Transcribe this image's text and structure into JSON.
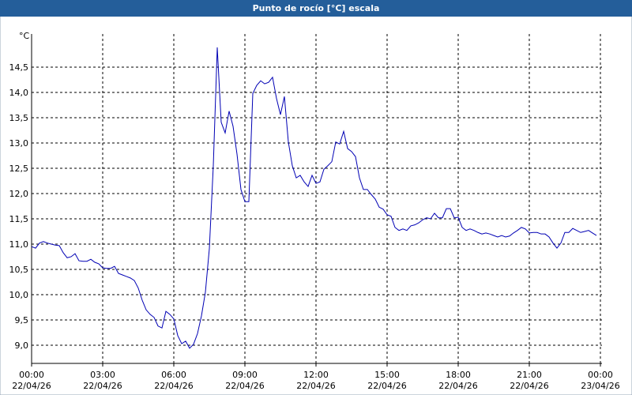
{
  "chart_data": {
    "type": "line",
    "title": "Punto de rocío [°C] escala",
    "ylabel": "°C",
    "x": [
      0,
      10,
      20,
      30,
      40,
      50,
      60,
      70,
      80,
      90,
      100,
      110,
      120,
      130,
      140,
      150,
      160,
      170,
      180,
      190,
      200,
      210,
      220,
      230,
      240,
      250,
      260,
      270,
      280,
      290,
      300,
      310,
      320,
      330,
      340,
      350,
      360,
      370,
      380,
      390,
      400,
      410,
      420,
      430,
      440,
      450,
      460,
      470,
      480,
      490,
      500,
      510,
      520,
      530,
      540,
      550,
      560,
      570,
      580,
      590,
      600,
      610,
      620,
      630,
      640,
      650,
      660,
      670,
      680,
      690,
      700,
      710,
      720,
      730,
      740,
      750,
      760,
      770,
      780,
      790,
      800,
      810,
      820,
      830,
      840,
      850,
      860,
      870,
      880,
      890,
      900,
      910,
      920,
      930,
      940,
      950,
      960,
      970,
      980,
      990,
      1000,
      1010,
      1020,
      1030,
      1040,
      1050,
      1060,
      1070,
      1080,
      1090,
      1100,
      1110,
      1120,
      1130,
      1140,
      1150,
      1160,
      1170,
      1180,
      1190,
      1200,
      1210,
      1220,
      1230,
      1240,
      1250,
      1260,
      1270,
      1280,
      1290,
      1300,
      1310,
      1320,
      1330,
      1340,
      1350,
      1360,
      1370,
      1380,
      1390,
      1400,
      1410,
      1420,
      1430
    ],
    "series": [
      {
        "color": "#0000b4",
        "values": [
          10.95,
          10.92,
          11.02,
          11.05,
          11.02,
          11.0,
          10.98,
          10.97,
          10.83,
          10.73,
          10.75,
          10.81,
          10.67,
          10.66,
          10.66,
          10.7,
          10.64,
          10.61,
          10.53,
          10.52,
          10.52,
          10.56,
          10.42,
          10.39,
          10.36,
          10.33,
          10.28,
          10.13,
          9.89,
          9.7,
          9.61,
          9.55,
          9.38,
          9.34,
          9.67,
          9.61,
          9.52,
          9.19,
          9.03,
          9.08,
          8.94,
          9.02,
          9.23,
          9.58,
          10.05,
          10.91,
          12.55,
          14.89,
          13.41,
          13.2,
          13.63,
          13.33,
          12.78,
          12.08,
          11.84,
          11.84,
          13.98,
          14.14,
          14.23,
          14.17,
          14.2,
          14.3,
          13.88,
          13.56,
          13.92,
          13.02,
          12.55,
          12.31,
          12.36,
          12.23,
          12.14,
          12.36,
          12.2,
          12.23,
          12.48,
          12.55,
          12.63,
          13.02,
          12.98,
          13.23,
          12.89,
          12.83,
          12.73,
          12.31,
          12.08,
          12.08,
          11.98,
          11.89,
          11.73,
          11.69,
          11.58,
          11.55,
          11.33,
          11.27,
          11.3,
          11.27,
          11.36,
          11.38,
          11.42,
          11.48,
          11.52,
          11.5,
          11.61,
          11.52,
          11.52,
          11.7,
          11.7,
          11.52,
          11.53,
          11.33,
          11.27,
          11.3,
          11.27,
          11.23,
          11.2,
          11.22,
          11.2,
          11.17,
          11.14,
          11.17,
          11.14,
          11.16,
          11.22,
          11.27,
          11.33,
          11.3,
          11.22,
          11.23,
          11.23,
          11.2,
          11.2,
          11.14,
          11.02,
          10.92,
          11.02,
          11.23,
          11.23,
          11.31,
          11.27,
          11.23,
          11.25,
          11.27,
          11.22,
          11.17
        ]
      }
    ],
    "xlim": [
      0,
      1440
    ],
    "xticks": [
      {
        "value": 0,
        "label": "00:00 22/04/26"
      },
      {
        "value": 180,
        "label": "03:00 22/04/26"
      },
      {
        "value": 360,
        "label": "06:00 22/04/26"
      },
      {
        "value": 540,
        "label": "09:00 22/04/26"
      },
      {
        "value": 720,
        "label": "12:00 22/04/26"
      },
      {
        "value": 900,
        "label": "15:00 22/04/26"
      },
      {
        "value": 1080,
        "label": "18:00 22/04/26"
      },
      {
        "value": 1260,
        "label": "21:00 22/04/26"
      },
      {
        "value": 1440,
        "label": "00:00 23/04/26"
      }
    ],
    "ylim": [
      8.64,
      15.0
    ],
    "yticks": [
      {
        "value": 9.0,
        "label": "9,0"
      },
      {
        "value": 9.5,
        "label": "9,5"
      },
      {
        "value": 10.0,
        "label": "10,0"
      },
      {
        "value": 10.5,
        "label": "10,5"
      },
      {
        "value": 11.0,
        "label": "11,0"
      },
      {
        "value": 11.5,
        "label": "11,5"
      },
      {
        "value": 12.0,
        "label": "12,0"
      },
      {
        "value": 12.5,
        "label": "12,5"
      },
      {
        "value": 13.0,
        "label": "13,0"
      },
      {
        "value": 13.5,
        "label": "13,5"
      },
      {
        "value": 14.0,
        "label": "14,0"
      },
      {
        "value": 14.5,
        "label": "14,5"
      }
    ],
    "grid": true
  }
}
